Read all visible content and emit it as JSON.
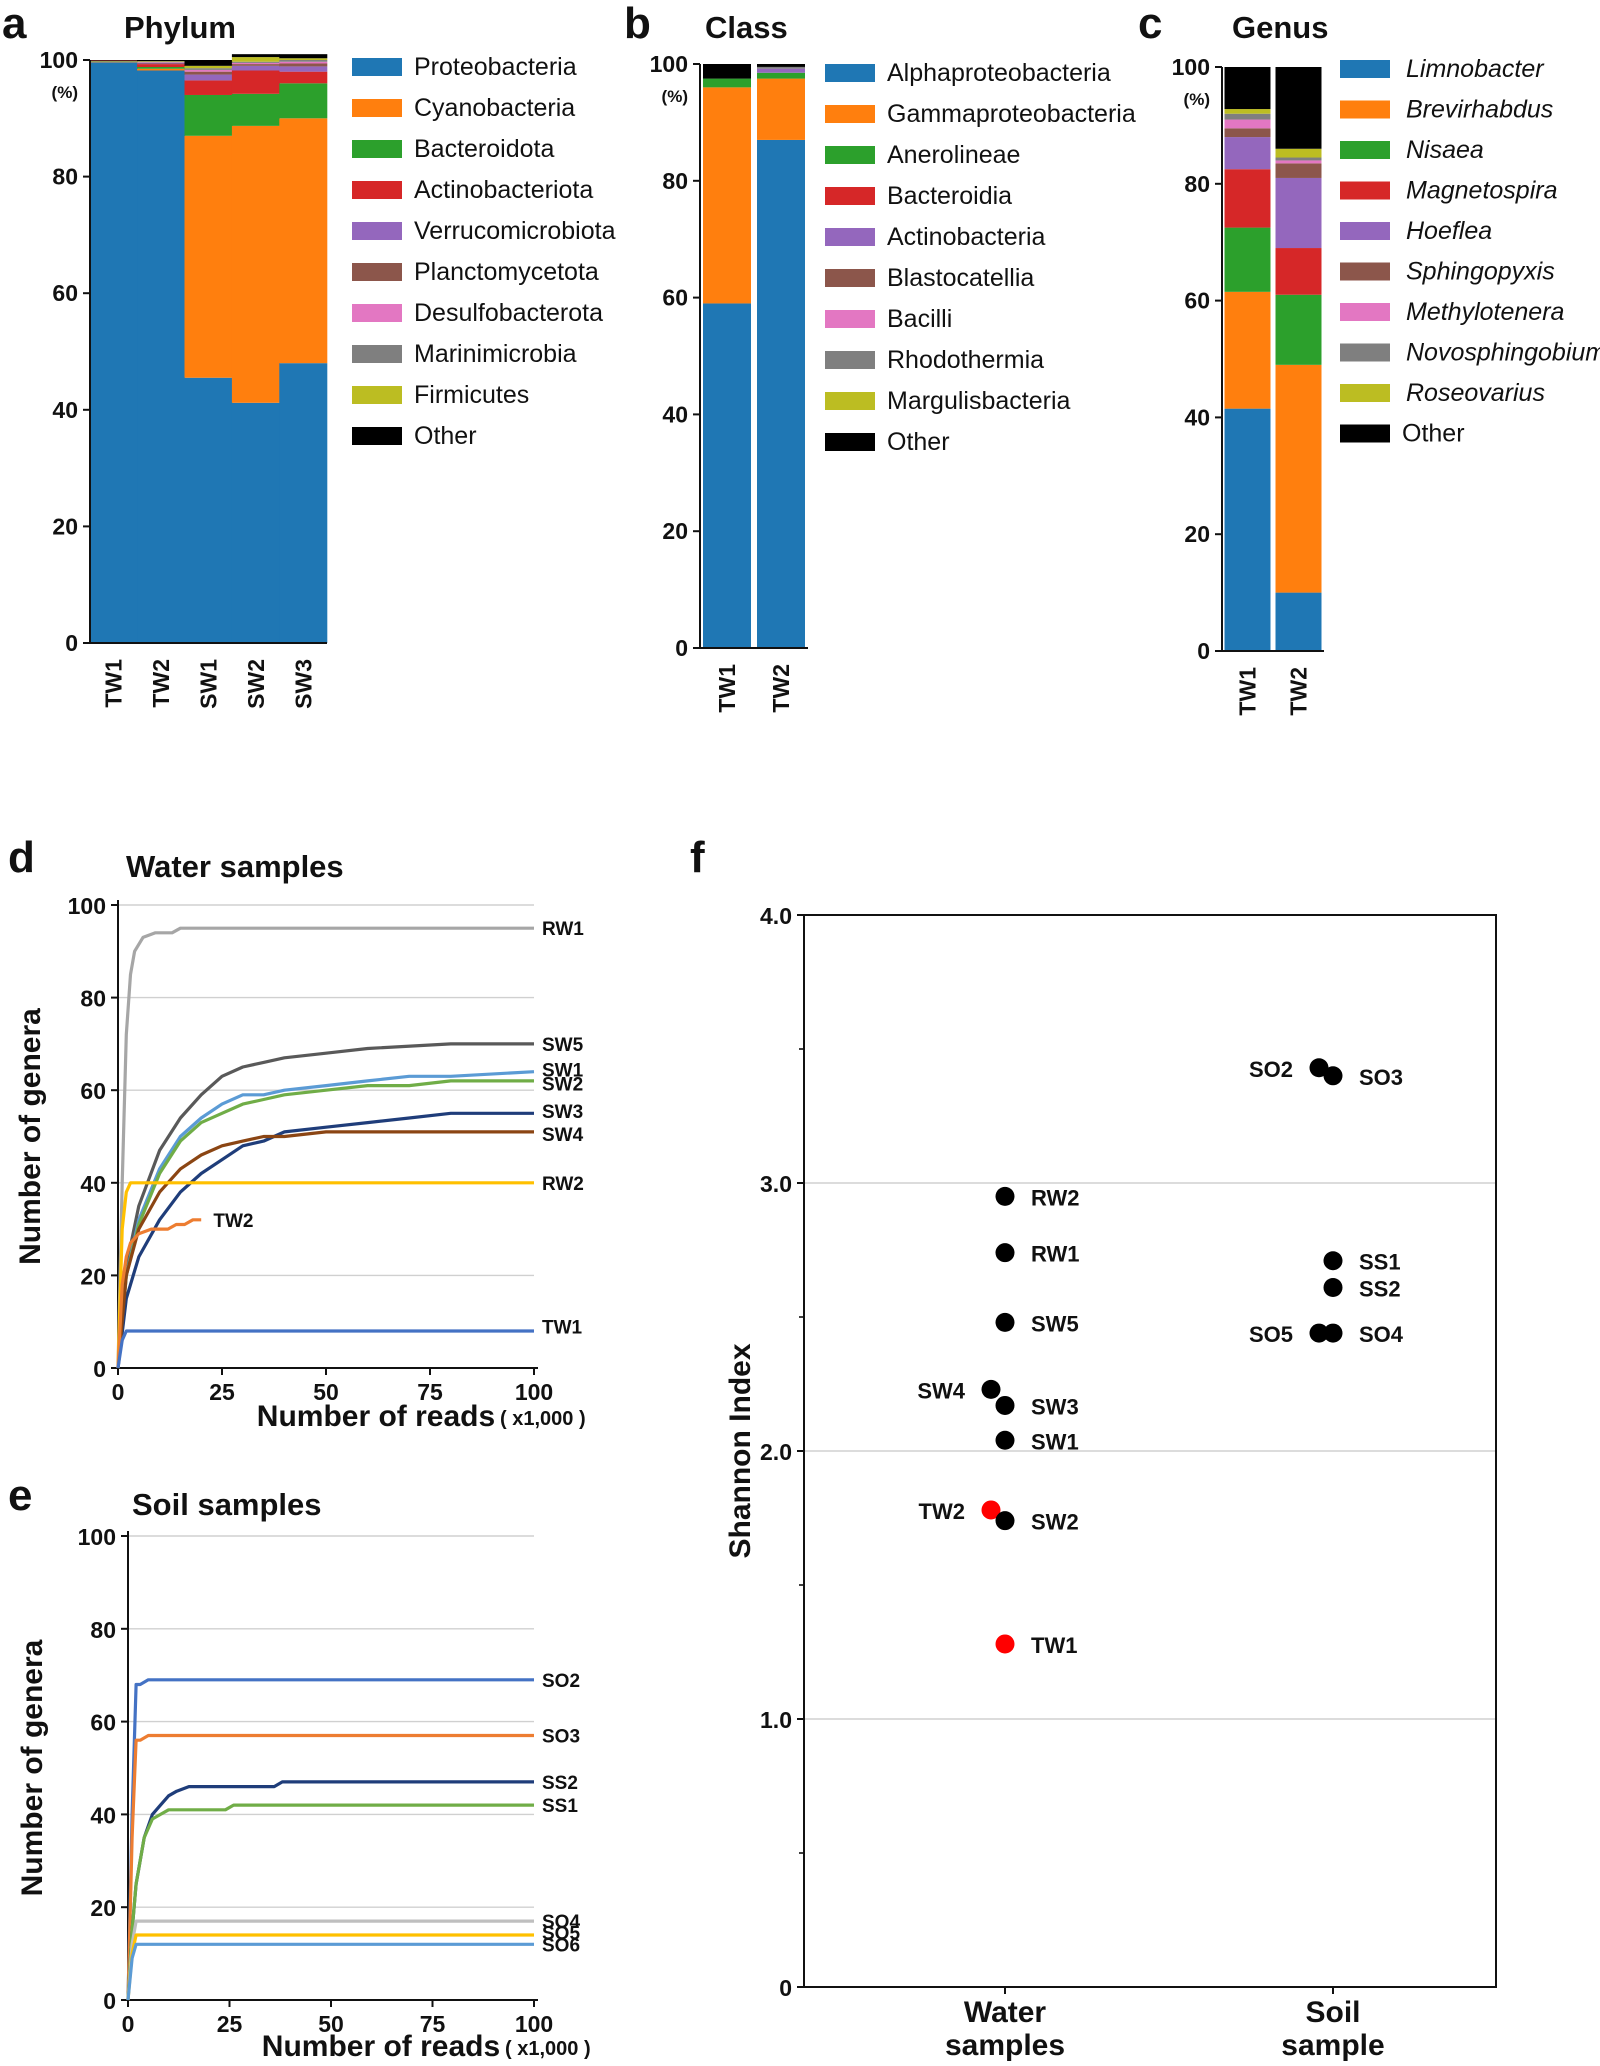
{
  "panel_letters": {
    "a": "a",
    "b": "b",
    "c": "c",
    "d": "d",
    "e": "e",
    "f": "f"
  },
  "percent_label": "(%)",
  "chart_data": [
    {
      "id": "a",
      "type": "bar",
      "stacked": true,
      "title": "Phylum",
      "categories": [
        "TW1",
        "TW2",
        "SW1",
        "SW2",
        "SW3"
      ],
      "ylim": [
        0,
        100
      ],
      "yticks": [
        0,
        20,
        40,
        60,
        80,
        100
      ],
      "legend_position": "right",
      "series": [
        {
          "name": "Proteobacteria",
          "color": "#1f77b4",
          "values": [
            99.6,
            98.2,
            45.5,
            41.2,
            48.0
          ]
        },
        {
          "name": "Cyanobacteria",
          "color": "#ff7f0e",
          "values": [
            0.1,
            0.3,
            41.5,
            47.5,
            42.0
          ]
        },
        {
          "name": "Bacteroidota",
          "color": "#2ca02c",
          "values": [
            0.1,
            0.3,
            7.0,
            5.5,
            6.0
          ]
        },
        {
          "name": "Actinobacteriota",
          "color": "#d62728",
          "values": [
            0.1,
            0.5,
            2.5,
            4.0,
            2.0
          ]
        },
        {
          "name": "Verrucomicrobiota",
          "color": "#9467bd",
          "values": [
            0.0,
            0.1,
            1.0,
            0.8,
            0.9
          ]
        },
        {
          "name": "Planctomycetota",
          "color": "#8c564b",
          "values": [
            0.0,
            0.1,
            0.5,
            0.3,
            0.5
          ]
        },
        {
          "name": "Desulfobacterota",
          "color": "#e377c2",
          "values": [
            0.0,
            0.1,
            0.3,
            0.2,
            0.3
          ]
        },
        {
          "name": "Marinimicrobia",
          "color": "#7f7f7f",
          "values": [
            0.0,
            0.1,
            0.3,
            0.2,
            0.3
          ]
        },
        {
          "name": "Firmicutes",
          "color": "#bcbd22",
          "values": [
            0.0,
            0.1,
            0.4,
            0.8,
            0.3
          ]
        },
        {
          "name": "Other",
          "color": "#000000",
          "values": [
            0.1,
            0.2,
            1.0,
            0.5,
            0.7
          ]
        }
      ]
    },
    {
      "id": "b",
      "type": "bar",
      "stacked": true,
      "title": "Class",
      "categories": [
        "TW1",
        "TW2"
      ],
      "ylim": [
        0,
        100
      ],
      "yticks": [
        0,
        20,
        40,
        60,
        80,
        100
      ],
      "legend_position": "right",
      "series": [
        {
          "name": "Alphaproteobacteria",
          "color": "#1f77b4",
          "values": [
            59.0,
            87.0
          ]
        },
        {
          "name": "Gammaproteobacteria",
          "color": "#ff7f0e",
          "values": [
            37.0,
            10.5
          ]
        },
        {
          "name": "Anerolineae",
          "color": "#2ca02c",
          "values": [
            1.5,
            1.0
          ]
        },
        {
          "name": "Bacteroidia",
          "color": "#d62728",
          "values": [
            0.0,
            0.0
          ]
        },
        {
          "name": "Actinobacteria",
          "color": "#9467bd",
          "values": [
            0.0,
            0.7
          ]
        },
        {
          "name": "Blastocatellia",
          "color": "#8c564b",
          "values": [
            0.0,
            0.0
          ]
        },
        {
          "name": "Bacilli",
          "color": "#e377c2",
          "values": [
            0.0,
            0.0
          ]
        },
        {
          "name": "Rhodothermia",
          "color": "#7f7f7f",
          "values": [
            0.0,
            0.3
          ]
        },
        {
          "name": "Margulisbacteria",
          "color": "#bcbd22",
          "values": [
            0.0,
            0.0
          ]
        },
        {
          "name": "Other",
          "color": "#000000",
          "values": [
            2.5,
            0.5
          ]
        }
      ]
    },
    {
      "id": "c",
      "type": "bar",
      "stacked": true,
      "title": "Genus",
      "categories": [
        "TW1",
        "TW2"
      ],
      "ylim": [
        0,
        100
      ],
      "yticks": [
        0,
        20,
        40,
        60,
        80,
        100
      ],
      "legend_position": "right",
      "legend_italic": true,
      "series": [
        {
          "name": "Limnobacter",
          "color": "#1f77b4",
          "values": [
            41.5,
            10.0
          ]
        },
        {
          "name": "Brevirhabdus",
          "color": "#ff7f0e",
          "values": [
            20.0,
            39.0
          ]
        },
        {
          "name": "Nisaea",
          "color": "#2ca02c",
          "values": [
            11.0,
            12.0
          ]
        },
        {
          "name": "Magnetospira",
          "color": "#d62728",
          "values": [
            10.0,
            8.0
          ]
        },
        {
          "name": "Hoeflea",
          "color": "#9467bd",
          "values": [
            5.5,
            12.0
          ]
        },
        {
          "name": "Sphingopyxis",
          "color": "#8c564b",
          "values": [
            1.5,
            2.5
          ]
        },
        {
          "name": "Methylotenera",
          "color": "#e377c2",
          "values": [
            1.5,
            0.5
          ]
        },
        {
          "name": "Novosphingobium",
          "color": "#7f7f7f",
          "values": [
            1.0,
            0.5
          ]
        },
        {
          "name": "Roseovarius",
          "color": "#bcbd22",
          "values": [
            0.8,
            1.5
          ]
        },
        {
          "name": "Other",
          "color": "#000000",
          "values": [
            7.2,
            14.0
          ]
        }
      ]
    },
    {
      "id": "d",
      "type": "line",
      "title": "Water samples",
      "xlabel": "Number of reads",
      "xunit": "( x1,000 )",
      "ylabel": "Number of genera",
      "xlim": [
        0,
        100
      ],
      "ylim": [
        0,
        100
      ],
      "xticks": [
        0,
        25,
        50,
        75,
        100
      ],
      "yticks": [
        0,
        20,
        40,
        60,
        80,
        100
      ],
      "grid": true,
      "series": [
        {
          "name": "RW1",
          "color": "#a6a6a6",
          "label_color": "#111111",
          "label_y": 95,
          "x": [
            0,
            1,
            2,
            3,
            4,
            6,
            9,
            12,
            13,
            15,
            20,
            40,
            60,
            100
          ],
          "y": [
            0,
            40,
            72,
            85,
            90,
            93,
            94,
            94,
            94,
            95,
            95,
            95,
            95,
            95
          ]
        },
        {
          "name": "SW5",
          "color": "#595959",
          "label_color": "#111111",
          "label_y": 70,
          "x": [
            0,
            2,
            5,
            10,
            15,
            20,
            25,
            30,
            35,
            40,
            50,
            60,
            80,
            100
          ],
          "y": [
            0,
            22,
            35,
            47,
            54,
            59,
            63,
            65,
            66,
            67,
            68,
            69,
            70,
            70
          ]
        },
        {
          "name": "SW1",
          "color": "#5b9bd5",
          "label_color": "#111111",
          "label_y": 64.5,
          "x": [
            0,
            2,
            5,
            10,
            15,
            20,
            25,
            30,
            35,
            40,
            50,
            60,
            70,
            80,
            100
          ],
          "y": [
            0,
            20,
            32,
            43,
            50,
            54,
            57,
            59,
            59,
            60,
            61,
            62,
            63,
            63,
            64
          ]
        },
        {
          "name": "SW2",
          "color": "#70ad47",
          "label_color": "#111111",
          "label_y": 61.5,
          "x": [
            0,
            2,
            5,
            10,
            15,
            20,
            25,
            30,
            35,
            40,
            50,
            60,
            70,
            80,
            100
          ],
          "y": [
            0,
            20,
            31,
            42,
            49,
            53,
            55,
            57,
            58,
            59,
            60,
            61,
            61,
            62,
            62
          ]
        },
        {
          "name": "SW3",
          "color": "#1f3d7a",
          "label_color": "#111111",
          "label_y": 55.5,
          "x": [
            0,
            2,
            5,
            10,
            15,
            20,
            25,
            30,
            35,
            40,
            50,
            60,
            70,
            80,
            100
          ],
          "y": [
            0,
            15,
            24,
            32,
            38,
            42,
            45,
            48,
            49,
            51,
            52,
            53,
            54,
            55,
            55
          ]
        },
        {
          "name": "SW4",
          "color": "#8b4513",
          "label_color": "#111111",
          "label_y": 50.5,
          "x": [
            0,
            2,
            5,
            10,
            15,
            20,
            25,
            30,
            35,
            40,
            50,
            60,
            100
          ],
          "y": [
            0,
            20,
            30,
            38,
            43,
            46,
            48,
            49,
            50,
            50,
            51,
            51,
            51
          ]
        },
        {
          "name": "RW2",
          "color": "#ffc000",
          "label_color": "#111111",
          "label_y": 40,
          "x": [
            0,
            1,
            2,
            3,
            100
          ],
          "y": [
            0,
            30,
            38,
            40,
            40
          ]
        },
        {
          "name": "TW2",
          "color": "#ed7d31",
          "label_color": "#e0262b",
          "label_y": 32,
          "label_x": 21,
          "x": [
            0,
            1,
            2,
            3,
            5,
            8,
            10,
            12,
            14,
            16,
            18,
            20
          ],
          "y": [
            0,
            18,
            24,
            27,
            29,
            30,
            30,
            30,
            31,
            31,
            32,
            32
          ]
        },
        {
          "name": "TW1",
          "color": "#4472c4",
          "label_color": "#e0262b",
          "label_y": 9,
          "x": [
            0,
            1,
            2,
            100
          ],
          "y": [
            0,
            6,
            8,
            8
          ]
        }
      ]
    },
    {
      "id": "e",
      "type": "line",
      "title": "Soil samples",
      "xlabel": "Number of reads",
      "xunit": "( x1,000 )",
      "ylabel": "Number of genera",
      "xlim": [
        0,
        100
      ],
      "ylim": [
        0,
        100
      ],
      "xticks": [
        0,
        25,
        50,
        75,
        100
      ],
      "yticks": [
        0,
        20,
        40,
        60,
        80,
        100
      ],
      "grid": true,
      "series": [
        {
          "name": "SO2",
          "color": "#4472c4",
          "label_color": "#111111",
          "label_y": 69,
          "x": [
            0,
            1,
            2,
            3,
            5,
            100
          ],
          "y": [
            0,
            40,
            68,
            68,
            69,
            69
          ]
        },
        {
          "name": "SO3",
          "color": "#ed7d31",
          "label_color": "#111111",
          "label_y": 57,
          "x": [
            0,
            1,
            2,
            3,
            5,
            100
          ],
          "y": [
            0,
            35,
            56,
            56,
            57,
            57
          ]
        },
        {
          "name": "SS2",
          "color": "#1f3d7a",
          "label_color": "#111111",
          "label_y": 47,
          "x": [
            0,
            1,
            2,
            4,
            6,
            8,
            10,
            12,
            15,
            20,
            30,
            36,
            38,
            40,
            100
          ],
          "y": [
            0,
            15,
            25,
            35,
            40,
            42,
            44,
            45,
            46,
            46,
            46,
            46,
            47,
            47,
            47
          ]
        },
        {
          "name": "SS1",
          "color": "#70ad47",
          "label_color": "#111111",
          "label_y": 42,
          "x": [
            0,
            1,
            2,
            4,
            6,
            8,
            10,
            12,
            15,
            20,
            24,
            26,
            28,
            100
          ],
          "y": [
            0,
            15,
            25,
            35,
            39,
            40,
            41,
            41,
            41,
            41,
            41,
            42,
            42,
            42
          ]
        },
        {
          "name": "SO4",
          "color": "#bfbfbf",
          "label_color": "#111111",
          "label_y": 17,
          "x": [
            0,
            1,
            2,
            100
          ],
          "y": [
            0,
            12,
            17,
            17
          ]
        },
        {
          "name": "SO5",
          "color": "#ffc000",
          "label_color": "#111111",
          "label_y": 14.5,
          "x": [
            0,
            1,
            2,
            100
          ],
          "y": [
            0,
            10,
            14,
            14
          ]
        },
        {
          "name": "SO6",
          "color": "#5b9bd5",
          "label_color": "#111111",
          "label_y": 12,
          "x": [
            0,
            1,
            2,
            100
          ],
          "y": [
            0,
            9,
            12,
            12
          ]
        }
      ]
    },
    {
      "id": "f",
      "type": "scatter",
      "ylabel": "Shannon Index",
      "ylim": [
        0,
        4
      ],
      "yticks": [
        "0",
        "1.0",
        "2.0",
        "3.0",
        "4.0"
      ],
      "grid": true,
      "categories": [
        "Water\nsamples",
        "Soil\nsample"
      ],
      "points": [
        {
          "name": "RW2",
          "group": 0,
          "dx": 0,
          "y": 2.95,
          "color": "#000000",
          "label_side": "right"
        },
        {
          "name": "RW1",
          "group": 0,
          "dx": 0,
          "y": 2.74,
          "color": "#000000",
          "label_side": "right"
        },
        {
          "name": "SW5",
          "group": 0,
          "dx": 0,
          "y": 2.48,
          "color": "#000000",
          "label_side": "right"
        },
        {
          "name": "SW4",
          "group": 0,
          "dx": -1,
          "y": 2.23,
          "color": "#000000",
          "label_side": "left"
        },
        {
          "name": "SW3",
          "group": 0,
          "dx": 0,
          "y": 2.17,
          "color": "#000000",
          "label_side": "right"
        },
        {
          "name": "SW1",
          "group": 0,
          "dx": 0,
          "y": 2.04,
          "color": "#000000",
          "label_side": "right"
        },
        {
          "name": "TW2",
          "group": 0,
          "dx": -1,
          "y": 1.78,
          "color": "#ff0000",
          "label_side": "left",
          "label_color": "#e0262b"
        },
        {
          "name": "SW2",
          "group": 0,
          "dx": 0,
          "y": 1.74,
          "color": "#000000",
          "label_side": "right"
        },
        {
          "name": "TW1",
          "group": 0,
          "dx": 0,
          "y": 1.28,
          "color": "#ff0000",
          "label_side": "right",
          "label_color": "#e0262b"
        },
        {
          "name": "SO2",
          "group": 1,
          "dx": -1,
          "y": 3.43,
          "color": "#000000",
          "label_side": "left"
        },
        {
          "name": "SO3",
          "group": 1,
          "dx": 0,
          "y": 3.4,
          "color": "#000000",
          "label_side": "right"
        },
        {
          "name": "SS1",
          "group": 1,
          "dx": 0,
          "y": 2.71,
          "color": "#000000",
          "label_side": "right"
        },
        {
          "name": "SS2",
          "group": 1,
          "dx": 0,
          "y": 2.61,
          "color": "#000000",
          "label_side": "right"
        },
        {
          "name": "SO5",
          "group": 1,
          "dx": -1,
          "y": 2.44,
          "color": "#000000",
          "label_side": "left"
        },
        {
          "name": "SO4",
          "group": 1,
          "dx": 0,
          "y": 2.44,
          "color": "#000000",
          "label_side": "right"
        }
      ]
    }
  ]
}
